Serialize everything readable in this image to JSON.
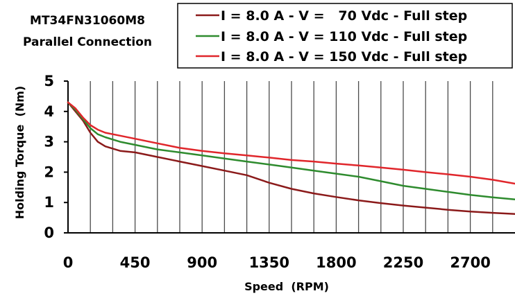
{
  "chart_data": {
    "type": "line",
    "title": "MT34FN31060M8",
    "subtitle": "Parallel Connection",
    "xlabel": "Speed  (RPM)",
    "ylabel": "Holding Torque  (Nm)",
    "xlim": [
      0,
      3000
    ],
    "ylim": [
      0,
      5
    ],
    "x_ticks": [
      "0",
      "450",
      "900",
      "1350",
      "1800",
      "2250",
      "2700"
    ],
    "x_tick_values": [
      0,
      450,
      900,
      1350,
      1800,
      2250,
      2700
    ],
    "y_ticks": [
      "0",
      "1",
      "2",
      "3",
      "4",
      "5"
    ],
    "y_tick_values": [
      0,
      1,
      2,
      3,
      4,
      5
    ],
    "grid": "vertical",
    "legend_position": "top-right",
    "series": [
      {
        "name": "I = 8.0 A - V =   70 Vdc - Full step",
        "color": "#8b1a1a",
        "points": [
          [
            0,
            4.3
          ],
          [
            50,
            4.0
          ],
          [
            100,
            3.7
          ],
          [
            150,
            3.3
          ],
          [
            200,
            3.0
          ],
          [
            250,
            2.85
          ],
          [
            350,
            2.7
          ],
          [
            450,
            2.65
          ],
          [
            600,
            2.5
          ],
          [
            750,
            2.35
          ],
          [
            900,
            2.2
          ],
          [
            1050,
            2.05
          ],
          [
            1200,
            1.9
          ],
          [
            1350,
            1.65
          ],
          [
            1500,
            1.45
          ],
          [
            1650,
            1.3
          ],
          [
            1800,
            1.18
          ],
          [
            1950,
            1.07
          ],
          [
            2100,
            0.98
          ],
          [
            2250,
            0.9
          ],
          [
            2400,
            0.83
          ],
          [
            2550,
            0.76
          ],
          [
            2700,
            0.7
          ],
          [
            2850,
            0.66
          ],
          [
            3000,
            0.62
          ]
        ]
      },
      {
        "name": "I = 8.0 A - V = 110 Vdc - Full step",
        "color": "#2e8b2e",
        "points": [
          [
            0,
            4.3
          ],
          [
            50,
            4.05
          ],
          [
            100,
            3.75
          ],
          [
            150,
            3.45
          ],
          [
            200,
            3.25
          ],
          [
            250,
            3.15
          ],
          [
            350,
            3.0
          ],
          [
            450,
            2.9
          ],
          [
            600,
            2.75
          ],
          [
            750,
            2.65
          ],
          [
            900,
            2.55
          ],
          [
            1050,
            2.45
          ],
          [
            1200,
            2.35
          ],
          [
            1350,
            2.25
          ],
          [
            1500,
            2.15
          ],
          [
            1650,
            2.05
          ],
          [
            1800,
            1.95
          ],
          [
            1950,
            1.85
          ],
          [
            2100,
            1.7
          ],
          [
            2250,
            1.55
          ],
          [
            2400,
            1.45
          ],
          [
            2550,
            1.35
          ],
          [
            2700,
            1.25
          ],
          [
            2850,
            1.17
          ],
          [
            3000,
            1.1
          ]
        ]
      },
      {
        "name": "I = 8.0 A - V = 150 Vdc - Full step",
        "color": "#e0262b",
        "points": [
          [
            0,
            4.3
          ],
          [
            50,
            4.1
          ],
          [
            100,
            3.8
          ],
          [
            150,
            3.55
          ],
          [
            200,
            3.4
          ],
          [
            250,
            3.3
          ],
          [
            350,
            3.2
          ],
          [
            450,
            3.1
          ],
          [
            600,
            2.95
          ],
          [
            750,
            2.8
          ],
          [
            900,
            2.7
          ],
          [
            1050,
            2.62
          ],
          [
            1200,
            2.55
          ],
          [
            1350,
            2.48
          ],
          [
            1500,
            2.4
          ],
          [
            1650,
            2.35
          ],
          [
            1800,
            2.28
          ],
          [
            1950,
            2.22
          ],
          [
            2100,
            2.15
          ],
          [
            2250,
            2.08
          ],
          [
            2400,
            2.0
          ],
          [
            2550,
            1.93
          ],
          [
            2700,
            1.85
          ],
          [
            2850,
            1.75
          ],
          [
            3000,
            1.62
          ]
        ]
      }
    ]
  }
}
